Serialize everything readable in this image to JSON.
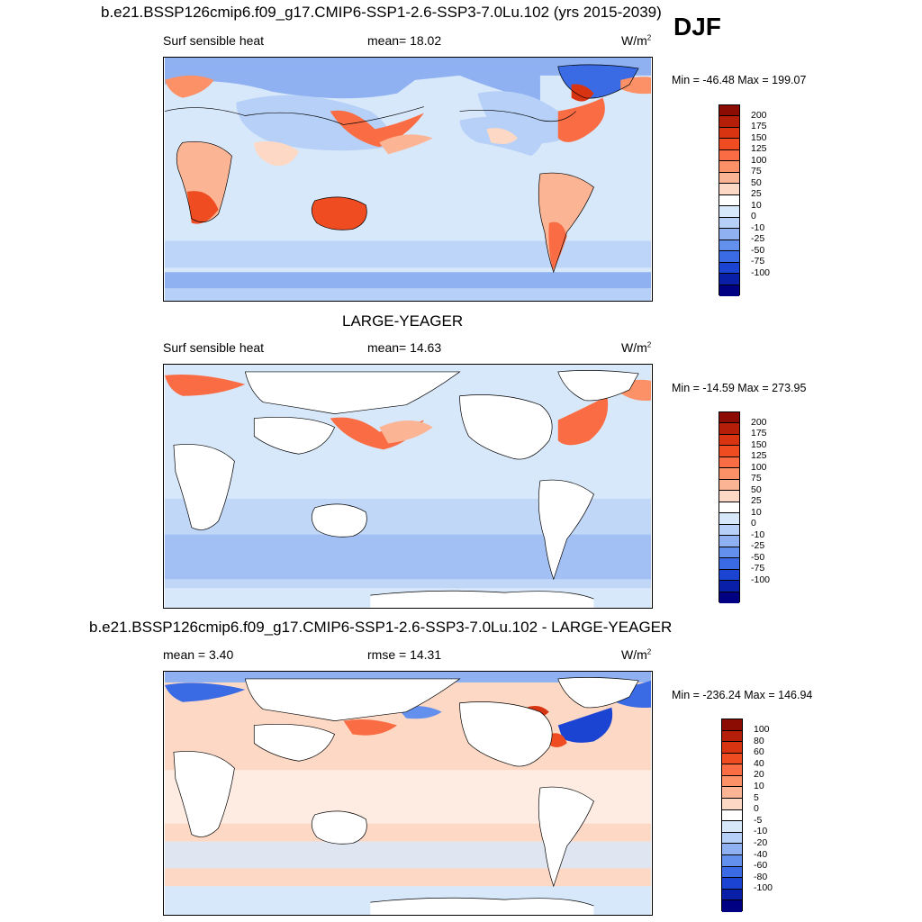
{
  "season": "DJF",
  "panels": [
    {
      "title": "b.e21.BSSP126cmip6.f09_g17.CMIP6-SSP1-2.6-SSP3-7.0Lu.102 (yrs 2015-2039)",
      "left_label": "Surf sensible heat",
      "mid_label": "mean=  18.02",
      "units_label": "W/m",
      "units_power": "2",
      "minmax": "Min = -46.48 Max = 199.07",
      "land_mode": "filled",
      "colorbar": {
        "labels": [
          "200",
          "175",
          "150",
          "125",
          "100",
          "75",
          "50",
          "25",
          "10",
          "0",
          "-10",
          "-25",
          "-50",
          "-75",
          "-100"
        ],
        "colors": [
          "#8c0c04",
          "#b51e08",
          "#d93412",
          "#f04c22",
          "#fa6d44",
          "#fc9167",
          "#fcb594",
          "#fdd9c5",
          "#ffffff",
          "#d8e8fb",
          "#b6d0f7",
          "#8fb1f2",
          "#6390ec",
          "#3a6be4",
          "#1c44d3",
          "#0a1fa8",
          "#000082"
        ]
      }
    },
    {
      "title": "LARGE-YEAGER",
      "left_label": "Surf sensible heat",
      "mid_label": "mean=  14.63",
      "units_label": "W/m",
      "units_power": "2",
      "minmax": "Min = -14.59 Max = 273.95",
      "land_mode": "blank",
      "colorbar": {
        "labels": [
          "200",
          "175",
          "150",
          "125",
          "100",
          "75",
          "50",
          "25",
          "10",
          "0",
          "-10",
          "-25",
          "-50",
          "-75",
          "-100"
        ],
        "colors": [
          "#8c0c04",
          "#b51e08",
          "#d93412",
          "#f04c22",
          "#fa6d44",
          "#fc9167",
          "#fcb594",
          "#fdd9c5",
          "#ffffff",
          "#d8e8fb",
          "#b6d0f7",
          "#8fb1f2",
          "#6390ec",
          "#3a6be4",
          "#1c44d3",
          "#0a1fa8",
          "#000082"
        ]
      }
    },
    {
      "title": "b.e21.BSSP126cmip6.f09_g17.CMIP6-SSP1-2.6-SSP3-7.0Lu.102 - LARGE-YEAGER",
      "left_label": "mean =   3.40",
      "mid_label": "rmse =  14.31",
      "units_label": "W/m",
      "units_power": "2",
      "minmax": "Min = -236.24 Max = 146.94",
      "land_mode": "blank-diff",
      "colorbar": {
        "labels": [
          "100",
          "80",
          "60",
          "40",
          "20",
          "10",
          "5",
          "0",
          "-5",
          "-10",
          "-20",
          "-40",
          "-60",
          "-80",
          "-100"
        ],
        "colors": [
          "#8c0c04",
          "#b51e08",
          "#d93412",
          "#f04c22",
          "#fa6d44",
          "#fc9167",
          "#fcb594",
          "#fdd9c5",
          "#ffffff",
          "#d8e8fb",
          "#b6d0f7",
          "#8fb1f2",
          "#6390ec",
          "#3a6be4",
          "#1c44d3",
          "#0a1fa8",
          "#000082"
        ]
      }
    }
  ]
}
